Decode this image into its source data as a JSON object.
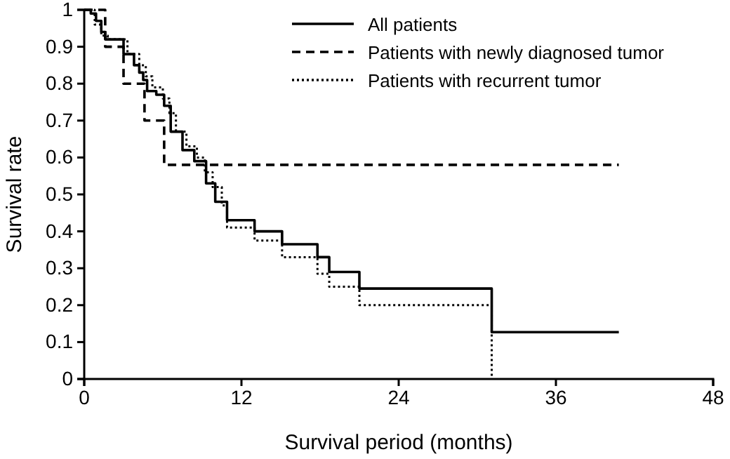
{
  "chart_data": {
    "type": "step",
    "xlabel": "Survival period (months)",
    "ylabel": "Survival rate",
    "xlim": [
      0,
      48
    ],
    "xticks": [
      0,
      12,
      24,
      36,
      48
    ],
    "ylim": [
      0,
      1
    ],
    "yticks": [
      0,
      0.1,
      0.2,
      0.3,
      0.4,
      0.5,
      0.6,
      0.7,
      0.8,
      0.9,
      1
    ],
    "grid": false,
    "legend": "top right",
    "marker": "none",
    "series": [
      {
        "name": "All patients",
        "color": "#000000",
        "line_style": "solid",
        "x": [
          0,
          0.5,
          0.9,
          1.3,
          1.6,
          3,
          3.8,
          4.2,
          4.5,
          4.8,
          5.5,
          6.1,
          6.6,
          7.5,
          8.4,
          9.3,
          10,
          10.9,
          13,
          15.1,
          17.8,
          18.7,
          21,
          31.1,
          40.8
        ],
        "values": [
          1,
          0.99,
          0.97,
          0.94,
          0.92,
          0.88,
          0.85,
          0.83,
          0.81,
          0.78,
          0.77,
          0.74,
          0.67,
          0.62,
          0.59,
          0.53,
          0.48,
          0.43,
          0.4,
          0.365,
          0.33,
          0.29,
          0.245,
          0.127,
          0.127
        ]
      },
      {
        "name": "Patients with newly diagnosed tumor",
        "color": "#000000",
        "line_style": "dashed",
        "x": [
          0,
          1.6,
          3,
          4.6,
          6.1,
          40.8
        ],
        "values": [
          1,
          0.9,
          0.8,
          0.7,
          0.58,
          0.58
        ]
      },
      {
        "name": "Patients with recurrent tumor",
        "color": "#000000",
        "line_style": "dotted",
        "x": [
          0,
          0.8,
          1.3,
          1.8,
          3.3,
          4.2,
          4.7,
          5.2,
          6,
          6.5,
          7,
          7.8,
          8.6,
          9.2,
          9.8,
          10.5,
          10.9,
          13,
          15.1,
          17.8,
          18.7,
          21,
          31.1
        ],
        "values": [
          1,
          0.96,
          0.93,
          0.92,
          0.88,
          0.85,
          0.82,
          0.79,
          0.76,
          0.72,
          0.67,
          0.63,
          0.6,
          0.56,
          0.52,
          0.47,
          0.41,
          0.375,
          0.33,
          0.285,
          0.25,
          0.2,
          0
        ]
      }
    ]
  }
}
